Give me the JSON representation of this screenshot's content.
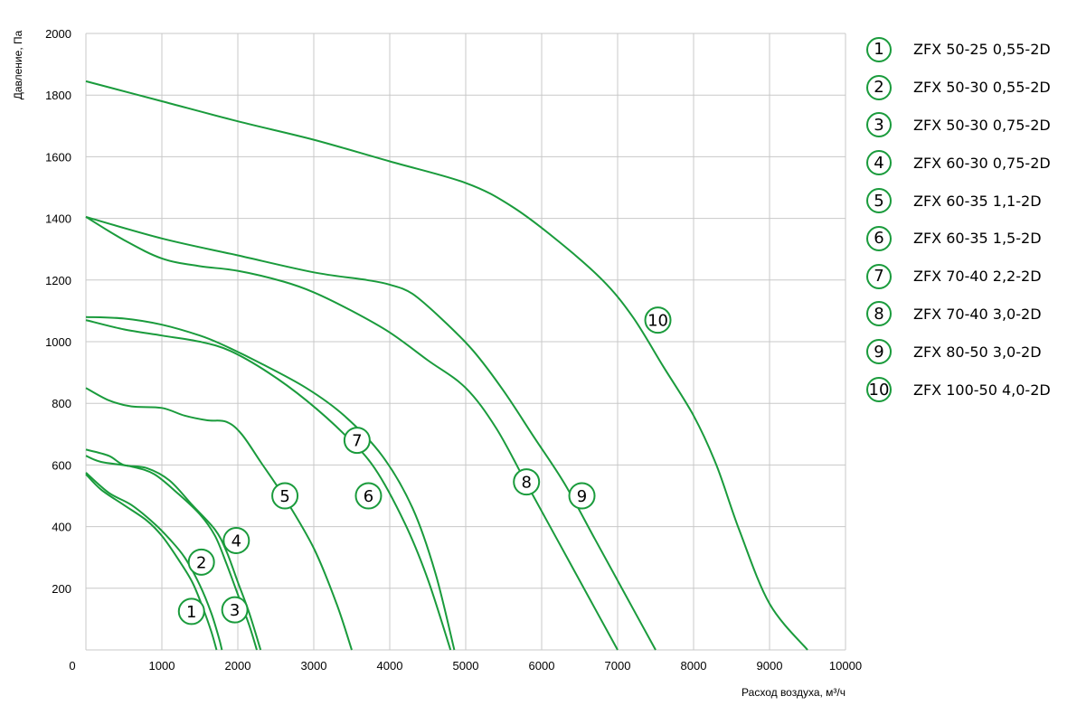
{
  "chart_data": {
    "type": "line",
    "xlabel": "Расход воздуха, м³/ч",
    "ylabel": "Давление, Па",
    "xlim": [
      0,
      10000
    ],
    "ylim": [
      0,
      2000
    ],
    "x_ticks": [
      0,
      1000,
      2000,
      3000,
      4000,
      5000,
      6000,
      7000,
      8000,
      9000,
      10000
    ],
    "y_ticks": [
      200,
      400,
      600,
      800,
      1000,
      1200,
      1400,
      1600,
      1800,
      2000
    ],
    "grid": true,
    "legend_position": "right",
    "line_color": "#1a9b3c",
    "series": [
      {
        "id": "1",
        "name": "ZFX 50-25 0,55-2D",
        "points": [
          [
            0,
            570
          ],
          [
            200,
            520
          ],
          [
            500,
            470
          ],
          [
            800,
            420
          ],
          [
            1000,
            370
          ],
          [
            1200,
            300
          ],
          [
            1400,
            220
          ],
          [
            1550,
            130
          ],
          [
            1650,
            60
          ],
          [
            1720,
            0
          ]
        ],
        "label_at": [
          1390,
          125
        ]
      },
      {
        "id": "2",
        "name": "ZFX 50-30 0,55-2D",
        "points": [
          [
            0,
            575
          ],
          [
            300,
            510
          ],
          [
            600,
            470
          ],
          [
            900,
            410
          ],
          [
            1100,
            360
          ],
          [
            1300,
            300
          ],
          [
            1500,
            210
          ],
          [
            1650,
            120
          ],
          [
            1750,
            40
          ],
          [
            1790,
            0
          ]
        ],
        "label_at": [
          1520,
          285
        ]
      },
      {
        "id": "3",
        "name": "ZFX 50-30 0,75-2D",
        "points": [
          [
            0,
            630
          ],
          [
            200,
            610
          ],
          [
            600,
            595
          ],
          [
            900,
            570
          ],
          [
            1200,
            510
          ],
          [
            1500,
            440
          ],
          [
            1700,
            370
          ],
          [
            1850,
            280
          ],
          [
            2000,
            180
          ],
          [
            2150,
            80
          ],
          [
            2250,
            0
          ]
        ],
        "label_at": [
          1960,
          130
        ]
      },
      {
        "id": "4",
        "name": "ZFX 60-30 0,75-2D",
        "points": [
          [
            0,
            650
          ],
          [
            300,
            630
          ],
          [
            500,
            600
          ],
          [
            800,
            590
          ],
          [
            1100,
            550
          ],
          [
            1400,
            470
          ],
          [
            1700,
            390
          ],
          [
            1850,
            320
          ],
          [
            2000,
            220
          ],
          [
            2150,
            120
          ],
          [
            2300,
            0
          ]
        ],
        "label_at": [
          1980,
          355
        ]
      },
      {
        "id": "5",
        "name": "ZFX 60-35 1,1-2D",
        "points": [
          [
            0,
            850
          ],
          [
            300,
            810
          ],
          [
            600,
            790
          ],
          [
            1000,
            785
          ],
          [
            1300,
            760
          ],
          [
            1600,
            745
          ],
          [
            1850,
            740
          ],
          [
            2050,
            700
          ],
          [
            2300,
            610
          ],
          [
            2600,
            500
          ],
          [
            3000,
            330
          ],
          [
            3300,
            150
          ],
          [
            3500,
            0
          ]
        ],
        "label_at": [
          2620,
          500
        ]
      },
      {
        "id": "6",
        "name": "ZFX 60-35 1,5-2D",
        "points": [
          [
            0,
            1070
          ],
          [
            500,
            1040
          ],
          [
            1000,
            1020
          ],
          [
            1500,
            1000
          ],
          [
            1900,
            970
          ],
          [
            2400,
            900
          ],
          [
            2900,
            810
          ],
          [
            3400,
            700
          ],
          [
            3800,
            590
          ],
          [
            4200,
            410
          ],
          [
            4500,
            230
          ],
          [
            4800,
            0
          ]
        ],
        "label_at": [
          3720,
          500
        ]
      },
      {
        "id": "7",
        "name": "ZFX 70-40 2,2-2D",
        "points": [
          [
            0,
            1080
          ],
          [
            500,
            1075
          ],
          [
            1000,
            1055
          ],
          [
            1500,
            1020
          ],
          [
            1800,
            990
          ],
          [
            2300,
            930
          ],
          [
            2900,
            850
          ],
          [
            3400,
            760
          ],
          [
            3900,
            630
          ],
          [
            4300,
            460
          ],
          [
            4600,
            250
          ],
          [
            4850,
            0
          ]
        ],
        "label_at": [
          3570,
          680
        ]
      },
      {
        "id": "8",
        "name": "ZFX 70-40 3,0-2D",
        "points": [
          [
            0,
            1405
          ],
          [
            500,
            1330
          ],
          [
            1000,
            1270
          ],
          [
            1500,
            1245
          ],
          [
            2000,
            1230
          ],
          [
            2600,
            1195
          ],
          [
            3000,
            1160
          ],
          [
            3500,
            1100
          ],
          [
            4000,
            1030
          ],
          [
            4500,
            940
          ],
          [
            5000,
            850
          ],
          [
            5400,
            720
          ],
          [
            5800,
            540
          ],
          [
            6200,
            360
          ],
          [
            6600,
            180
          ],
          [
            7000,
            0
          ]
        ],
        "label_at": [
          5800,
          545
        ]
      },
      {
        "id": "9",
        "name": "ZFX 80-50 3,0-2D",
        "points": [
          [
            0,
            1405
          ],
          [
            1000,
            1335
          ],
          [
            2000,
            1280
          ],
          [
            3000,
            1225
          ],
          [
            3700,
            1200
          ],
          [
            4000,
            1185
          ],
          [
            4300,
            1155
          ],
          [
            4700,
            1070
          ],
          [
            5100,
            970
          ],
          [
            5500,
            840
          ],
          [
            5900,
            690
          ],
          [
            6300,
            540
          ],
          [
            6700,
            360
          ],
          [
            7100,
            180
          ],
          [
            7500,
            0
          ]
        ],
        "label_at": [
          6530,
          500
        ]
      },
      {
        "id": "10",
        "name": "ZFX 100-50 4,0-2D",
        "points": [
          [
            0,
            1845
          ],
          [
            1000,
            1780
          ],
          [
            2000,
            1715
          ],
          [
            3000,
            1655
          ],
          [
            4000,
            1585
          ],
          [
            5000,
            1515
          ],
          [
            5600,
            1440
          ],
          [
            6200,
            1330
          ],
          [
            6800,
            1200
          ],
          [
            7200,
            1080
          ],
          [
            7600,
            920
          ],
          [
            8000,
            760
          ],
          [
            8300,
            600
          ],
          [
            8600,
            390
          ],
          [
            9000,
            150
          ],
          [
            9500,
            0
          ]
        ],
        "label_at": [
          7530,
          1070
        ]
      }
    ]
  }
}
